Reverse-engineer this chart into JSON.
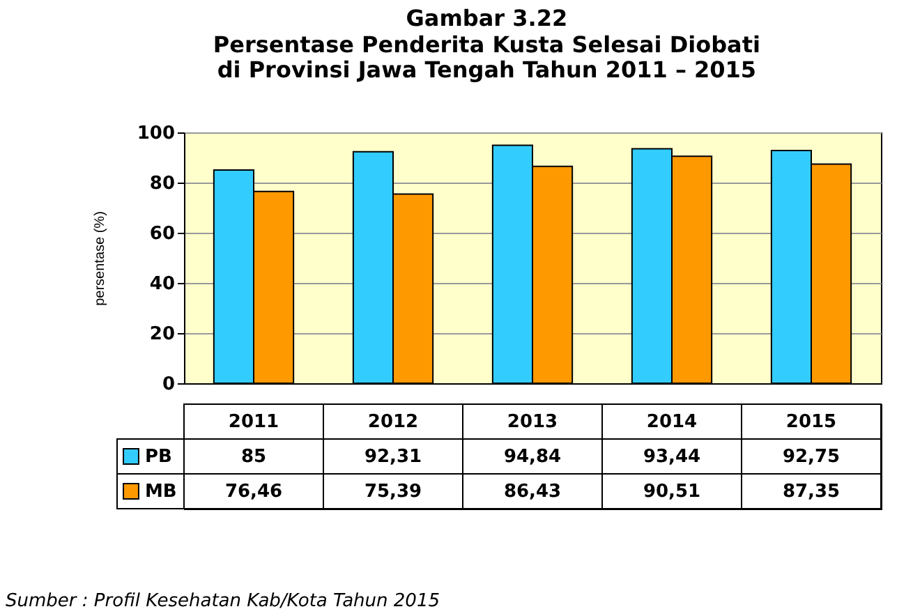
{
  "chart_data": {
    "type": "bar",
    "title": "Gambar 3.22",
    "subtitle": "Persentase Penderita Kusta Selesai Diobati\ndi Provinsi Jawa Tengah Tahun 2011 – 2015",
    "ylabel": "persentase (%)",
    "categories": [
      "2011",
      "2012",
      "2013",
      "2014",
      "2015"
    ],
    "series": [
      {
        "name": "PB",
        "color": "#33ccff",
        "values": [
          85,
          92.31,
          94.84,
          93.44,
          92.75
        ],
        "value_labels": [
          "85",
          "92,31",
          "94,84",
          "93,44",
          "92,75"
        ]
      },
      {
        "name": "MB",
        "color": "#ff9900",
        "values": [
          76.46,
          75.39,
          86.43,
          90.51,
          87.35
        ],
        "value_labels": [
          "76,46",
          "75,39",
          "86,43",
          "90,51",
          "87,35"
        ]
      }
    ],
    "ylim": [
      0,
      100
    ],
    "yticks": [
      0,
      20,
      40,
      60,
      80,
      100
    ],
    "grid": "y",
    "legend": "bottom",
    "annotations": [
      "Sumber : Profil Kesehatan Kab/Kota Tahun 2015"
    ]
  }
}
